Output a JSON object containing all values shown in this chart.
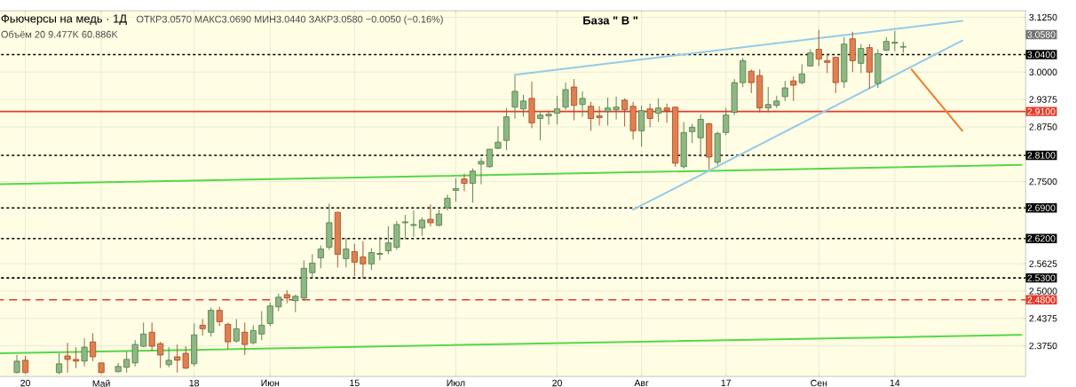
{
  "chart_data": {
    "type": "candlestick",
    "title": "Фьючерсы на медь · 1Д",
    "subtitle": "ОТКР3.0570 МАКС3.0690 МИН3.0440 ЗАКР3.0580 −0.0050 (−0.16%)",
    "annotations": [
      "База \" В \"",
      "Объём 20 9.477K 60.886K",
      "3.0580"
    ],
    "categories": [
      null,
      null,
      null,
      "20",
      null,
      null,
      null,
      null,
      null,
      null,
      null,
      null,
      "Май",
      null,
      null,
      null,
      null,
      null,
      null,
      null,
      null,
      null,
      null,
      "18",
      null,
      null,
      null,
      null,
      null,
      null,
      null,
      null,
      "Июн",
      null,
      null,
      null,
      null,
      null,
      null,
      null,
      null,
      null,
      "15",
      null,
      null,
      null,
      null,
      null,
      null,
      null,
      null,
      null,
      null,
      null,
      "Июл",
      null,
      null,
      null,
      null,
      null,
      null,
      null,
      null,
      null,
      null,
      null,
      "20",
      null,
      null,
      null,
      null,
      null,
      null,
      null,
      null,
      null,
      "Авг",
      null,
      null,
      null,
      null,
      null,
      null,
      null,
      null,
      null,
      "17",
      null,
      null,
      null,
      null,
      null,
      null,
      null,
      null,
      null,
      null,
      "Сен",
      null,
      null,
      null,
      null,
      null,
      null,
      null,
      null,
      "14",
      null,
      null,
      null,
      null,
      null,
      null,
      null,
      null,
      null,
      null,
      null,
      null,
      null,
      null,
      null
    ],
    "ohlc": [
      null,
      null,
      [
        2.314,
        2.354,
        2.312,
        2.34
      ],
      [
        2.342,
        2.352,
        2.312,
        2.314
      ],
      null,
      null,
      null,
      [
        2.314,
        2.358,
        2.31,
        2.334
      ],
      [
        2.352,
        2.382,
        2.314,
        2.344
      ],
      [
        2.344,
        2.372,
        2.324,
        2.34
      ],
      [
        2.34,
        2.392,
        2.328,
        2.372
      ],
      [
        2.384,
        2.404,
        2.34,
        2.35
      ],
      [
        2.336,
        2.336,
        2.312,
        2.314
      ],
      null,
      [
        2.316,
        2.336,
        2.314,
        2.328
      ],
      [
        2.326,
        2.362,
        2.314,
        2.344
      ],
      [
        2.336,
        2.388,
        2.328,
        2.378
      ],
      [
        2.374,
        2.428,
        2.372,
        2.402
      ],
      [
        2.406,
        2.428,
        2.364,
        2.374
      ],
      [
        2.38,
        2.384,
        2.324,
        2.354
      ],
      [
        2.332,
        2.372,
        2.326,
        2.342
      ],
      [
        2.35,
        2.378,
        2.314,
        2.342
      ],
      [
        2.358,
        2.374,
        2.322,
        2.324
      ],
      [
        2.334,
        2.426,
        2.328,
        2.4
      ],
      [
        2.422,
        2.436,
        2.398,
        2.414
      ],
      [
        2.406,
        2.462,
        2.396,
        2.456
      ],
      [
        2.456,
        2.464,
        2.42,
        2.43
      ],
      [
        2.424,
        2.428,
        2.368,
        2.384
      ],
      [
        2.386,
        2.436,
        2.382,
        2.414
      ],
      [
        2.406,
        2.428,
        2.354,
        2.378
      ],
      [
        2.382,
        2.422,
        2.378,
        2.41
      ],
      [
        2.402,
        2.454,
        2.388,
        2.422
      ],
      [
        2.426,
        2.474,
        2.42,
        2.466
      ],
      [
        2.464,
        2.494,
        2.454,
        2.486
      ],
      [
        2.492,
        2.502,
        2.472,
        2.484
      ],
      [
        2.478,
        2.492,
        2.452,
        2.488
      ],
      [
        2.484,
        2.57,
        2.478,
        2.552
      ],
      [
        2.542,
        2.584,
        2.528,
        2.564
      ],
      [
        2.576,
        2.604,
        2.552,
        2.596
      ],
      [
        2.6,
        2.7,
        2.594,
        2.656
      ],
      [
        2.68,
        2.68,
        2.554,
        2.584
      ],
      [
        2.574,
        2.622,
        2.554,
        2.596
      ],
      [
        2.59,
        2.608,
        2.534,
        2.566
      ],
      [
        2.578,
        2.614,
        2.528,
        2.562
      ],
      [
        2.562,
        2.598,
        2.548,
        2.588
      ],
      [
        2.584,
        2.624,
        2.57,
        2.586
      ],
      [
        2.592,
        2.648,
        2.584,
        2.61
      ],
      [
        2.6,
        2.66,
        2.594,
        2.652
      ],
      [
        2.656,
        2.674,
        2.618,
        2.658
      ],
      [
        2.65,
        2.684,
        2.624,
        2.652
      ],
      [
        2.644,
        2.668,
        2.626,
        2.662
      ],
      [
        2.664,
        2.698,
        2.648,
        2.656
      ],
      [
        2.65,
        2.686,
        2.648,
        2.676
      ],
      [
        2.69,
        2.72,
        2.684,
        2.712
      ],
      [
        2.73,
        2.758,
        2.704,
        2.734
      ],
      [
        2.756,
        2.768,
        2.728,
        2.746
      ],
      [
        2.746,
        2.78,
        2.702,
        2.774
      ],
      [
        2.79,
        2.804,
        2.744,
        2.796
      ],
      [
        2.784,
        2.824,
        2.782,
        2.824
      ],
      [
        2.826,
        2.876,
        2.824,
        2.84
      ],
      [
        2.844,
        2.918,
        2.822,
        2.898
      ],
      [
        2.92,
        2.992,
        2.894,
        2.956
      ],
      [
        2.916,
        2.948,
        2.898,
        2.934
      ],
      [
        2.94,
        2.978,
        2.872,
        2.884
      ],
      [
        2.894,
        2.908,
        2.844,
        2.902
      ],
      [
        2.9,
        2.912,
        2.88,
        2.904
      ],
      [
        2.906,
        2.946,
        2.88,
        2.916
      ],
      [
        2.92,
        2.976,
        2.914,
        2.96
      ],
      [
        2.966,
        2.984,
        2.89,
        2.924
      ],
      [
        2.926,
        2.956,
        2.898,
        2.94
      ],
      [
        2.922,
        2.932,
        2.866,
        2.894
      ],
      [
        2.9,
        2.922,
        2.878,
        2.896
      ],
      [
        2.91,
        2.942,
        2.878,
        2.918
      ],
      [
        2.914,
        2.944,
        2.892,
        2.92
      ],
      [
        2.936,
        2.94,
        2.876,
        2.914
      ],
      [
        2.922,
        2.932,
        2.846,
        2.866
      ],
      [
        2.866,
        2.924,
        2.83,
        2.912
      ],
      [
        2.916,
        2.928,
        2.874,
        2.894
      ],
      [
        2.906,
        2.94,
        2.886,
        2.918
      ],
      [
        2.918,
        2.928,
        2.884,
        2.912
      ],
      [
        2.92,
        2.92,
        2.784,
        2.792
      ],
      [
        2.784,
        2.886,
        2.78,
        2.862
      ],
      [
        2.864,
        2.882,
        2.838,
        2.874
      ],
      [
        2.85,
        2.904,
        2.806,
        2.892
      ],
      [
        2.882,
        2.884,
        2.778,
        2.806
      ],
      [
        2.794,
        2.864,
        2.788,
        2.86
      ],
      [
        2.862,
        2.918,
        2.856,
        2.902
      ],
      [
        2.908,
        2.984,
        2.902,
        2.976
      ],
      [
        2.976,
        3.032,
        2.966,
        3.026
      ],
      [
        3.002,
        3.006,
        2.952,
        2.976
      ],
      [
        2.992,
        3.006,
        2.908,
        2.918
      ],
      [
        2.918,
        2.966,
        2.908,
        2.926
      ],
      [
        2.924,
        2.946,
        2.918,
        2.934
      ],
      [
        2.944,
        2.98,
        2.934,
        2.964
      ],
      [
        2.98,
        2.99,
        2.934,
        2.97
      ],
      [
        2.976,
        3.018,
        2.972,
        2.996
      ],
      [
        3.014,
        3.052,
        3.012,
        3.044
      ],
      [
        3.052,
        3.096,
        3.014,
        3.03
      ],
      [
        3.026,
        3.042,
        2.998,
        3.022
      ],
      [
        3.034,
        3.034,
        2.952,
        2.976
      ],
      [
        2.978,
        3.08,
        2.964,
        3.064
      ],
      [
        3.076,
        3.092,
        3.0,
        3.026
      ],
      [
        3.02,
        3.064,
        2.998,
        3.054
      ],
      [
        3.056,
        3.064,
        2.962,
        3.0
      ],
      [
        2.974,
        3.052,
        2.964,
        3.042
      ],
      [
        3.05,
        3.08,
        3.048,
        3.07
      ],
      [
        3.066,
        3.094,
        3.048,
        3.068
      ],
      [
        3.057,
        3.069,
        3.044,
        3.058
      ],
      null,
      null,
      null,
      null,
      null,
      null,
      null,
      null,
      null,
      null,
      null,
      null,
      null,
      null
    ],
    "series": [
      {
        "type": "line",
        "color": "#55d84a",
        "values": [
          2.744,
          null,
          null,
          null,
          null,
          null,
          null,
          null,
          null,
          null,
          null,
          null,
          null,
          null,
          null,
          null,
          null,
          null,
          null,
          null,
          null,
          null,
          null,
          null,
          null,
          null,
          null,
          null,
          null,
          null,
          null,
          null,
          null,
          null,
          null,
          null,
          null,
          null,
          null,
          null,
          null,
          null,
          null,
          null,
          null,
          null,
          null,
          null,
          null,
          null,
          null,
          null,
          null,
          null,
          null,
          null,
          null,
          null,
          null,
          null,
          null,
          null,
          null,
          null,
          null,
          null,
          null,
          null,
          null,
          null,
          null,
          null,
          null,
          null,
          null,
          null,
          null,
          null,
          null,
          null,
          null,
          null,
          null,
          null,
          null,
          null,
          null,
          null,
          null,
          null,
          null,
          null,
          null,
          null,
          null,
          null,
          null,
          null,
          null,
          null,
          null,
          null,
          null,
          null,
          null,
          null,
          null,
          null,
          null,
          null,
          null,
          null,
          null,
          null,
          null,
          null,
          null,
          null,
          null,
          null,
          null,
          2.788
        ]
      },
      {
        "type": "line",
        "color": "#55d84a",
        "values": [
          2.358,
          null,
          null,
          null,
          null,
          null,
          null,
          null,
          null,
          null,
          null,
          null,
          null,
          null,
          null,
          null,
          null,
          null,
          null,
          null,
          null,
          null,
          null,
          null,
          null,
          null,
          null,
          null,
          null,
          null,
          null,
          null,
          null,
          null,
          null,
          null,
          null,
          null,
          null,
          null,
          null,
          null,
          null,
          null,
          null,
          null,
          null,
          null,
          null,
          null,
          null,
          null,
          null,
          null,
          null,
          null,
          null,
          null,
          null,
          null,
          null,
          null,
          null,
          null,
          null,
          null,
          null,
          null,
          null,
          null,
          null,
          null,
          null,
          null,
          null,
          null,
          null,
          null,
          null,
          null,
          null,
          null,
          null,
          null,
          null,
          null,
          null,
          null,
          null,
          null,
          null,
          null,
          null,
          null,
          null,
          null,
          null,
          null,
          null,
          null,
          null,
          null,
          null,
          null,
          null,
          null,
          null,
          null,
          null,
          null,
          null,
          null,
          null,
          null,
          null,
          null,
          null,
          null,
          null,
          null,
          null,
          2.4
        ]
      },
      {
        "type": "line",
        "color": "#93cbe8",
        "values": [
          null,
          null,
          null,
          null,
          null,
          null,
          null,
          null,
          null,
          null,
          null,
          null,
          null,
          null,
          null,
          null,
          null,
          null,
          null,
          null,
          null,
          null,
          null,
          null,
          null,
          null,
          null,
          null,
          null,
          null,
          null,
          null,
          null,
          null,
          null,
          null,
          null,
          null,
          null,
          null,
          null,
          null,
          null,
          null,
          null,
          null,
          null,
          null,
          null,
          null,
          null,
          null,
          null,
          null,
          null,
          null,
          null,
          null,
          null,
          null,
          null,
          2.994,
          null,
          null,
          null,
          null,
          null,
          null,
          null,
          null,
          null,
          null,
          null,
          null,
          null,
          null,
          null,
          null,
          null,
          null,
          null,
          null,
          null,
          null,
          null,
          null,
          null,
          null,
          null,
          null,
          null,
          null,
          null,
          null,
          null,
          null,
          null,
          null,
          null,
          null,
          null,
          null,
          null,
          null,
          null,
          null,
          null,
          null,
          null,
          null,
          null,
          null,
          null,
          null,
          3.117,
          null,
          null,
          null,
          null,
          null,
          null,
          null
        ]
      },
      {
        "type": "line",
        "color": "#93cbe8",
        "values": [
          null,
          null,
          null,
          null,
          null,
          null,
          null,
          null,
          null,
          null,
          null,
          null,
          null,
          null,
          null,
          null,
          null,
          null,
          null,
          null,
          null,
          null,
          null,
          null,
          null,
          null,
          null,
          null,
          null,
          null,
          null,
          null,
          null,
          null,
          null,
          null,
          null,
          null,
          null,
          null,
          null,
          null,
          null,
          null,
          null,
          null,
          null,
          null,
          null,
          null,
          null,
          null,
          null,
          null,
          null,
          null,
          null,
          null,
          null,
          null,
          null,
          null,
          null,
          null,
          null,
          null,
          null,
          null,
          null,
          null,
          null,
          null,
          null,
          null,
          null,
          2.686,
          null,
          null,
          null,
          null,
          null,
          null,
          null,
          null,
          null,
          null,
          null,
          null,
          null,
          null,
          null,
          null,
          null,
          null,
          null,
          null,
          null,
          null,
          null,
          null,
          null,
          null,
          null,
          null,
          null,
          null,
          null,
          null,
          null,
          null,
          null,
          null,
          null,
          null,
          3.072,
          null,
          null,
          null,
          null,
          null,
          null,
          null
        ]
      },
      {
        "type": "line",
        "color": "#f07c28",
        "values": [
          null,
          null,
          null,
          null,
          null,
          null,
          null,
          null,
          null,
          null,
          null,
          null,
          null,
          null,
          null,
          null,
          null,
          null,
          null,
          null,
          null,
          null,
          null,
          null,
          null,
          null,
          null,
          null,
          null,
          null,
          null,
          null,
          null,
          null,
          null,
          null,
          null,
          null,
          null,
          null,
          null,
          null,
          null,
          null,
          null,
          null,
          null,
          null,
          null,
          null,
          null,
          null,
          null,
          null,
          null,
          null,
          null,
          null,
          null,
          null,
          null,
          null,
          null,
          null,
          null,
          null,
          null,
          null,
          null,
          null,
          null,
          null,
          null,
          null,
          null,
          null,
          null,
          null,
          null,
          null,
          null,
          null,
          null,
          null,
          null,
          null,
          null,
          null,
          null,
          null,
          null,
          null,
          null,
          null,
          null,
          null,
          null,
          null,
          null,
          null,
          null,
          null,
          null,
          null,
          null,
          null,
          null,
          null,
          3.006,
          null,
          null,
          null,
          null,
          null,
          2.866,
          null,
          null,
          null,
          null,
          null,
          null,
          null
        ]
      }
    ],
    "ref_lines": [
      {
        "axis": "y",
        "value": 3.04,
        "label": "3.0400",
        "color": "#000000",
        "line_style": "dotted"
      },
      {
        "axis": "y",
        "value": 2.91,
        "label": "2.9100",
        "color": "#e53b2a",
        "line_style": "solid"
      },
      {
        "axis": "y",
        "value": 2.81,
        "label": "2.8100",
        "color": "#000000",
        "line_style": "dotted"
      },
      {
        "axis": "y",
        "value": 2.69,
        "label": "2.6900",
        "color": "#000000",
        "line_style": "dotted"
      },
      {
        "axis": "y",
        "value": 2.62,
        "label": "2.6200",
        "color": "#000000",
        "line_style": "dotted"
      },
      {
        "axis": "y",
        "value": 2.53,
        "label": "2.5300",
        "color": "#000000",
        "line_style": "dotted"
      },
      {
        "axis": "y",
        "value": 2.48,
        "label": "2.4800",
        "color": "#e53b2a",
        "line_style": "dashed"
      }
    ],
    "ylim": [
      2.305,
      3.14
    ],
    "yticks": [
      {
        "value": 2.375,
        "label": "2.3750"
      },
      {
        "value": 2.4375,
        "label": "2.4375"
      },
      {
        "value": 2.5,
        "label": "2.5000"
      },
      {
        "value": 2.5625,
        "label": "2.5625"
      },
      {
        "value": 2.75,
        "label": "2.7500"
      },
      {
        "value": 2.875,
        "label": "2.8750"
      },
      {
        "value": 2.9375,
        "label": "2.9375"
      },
      {
        "value": 3.0,
        "label": "3.0000"
      },
      {
        "value": 3.125,
        "label": "3.1250"
      }
    ],
    "grid": true
  }
}
